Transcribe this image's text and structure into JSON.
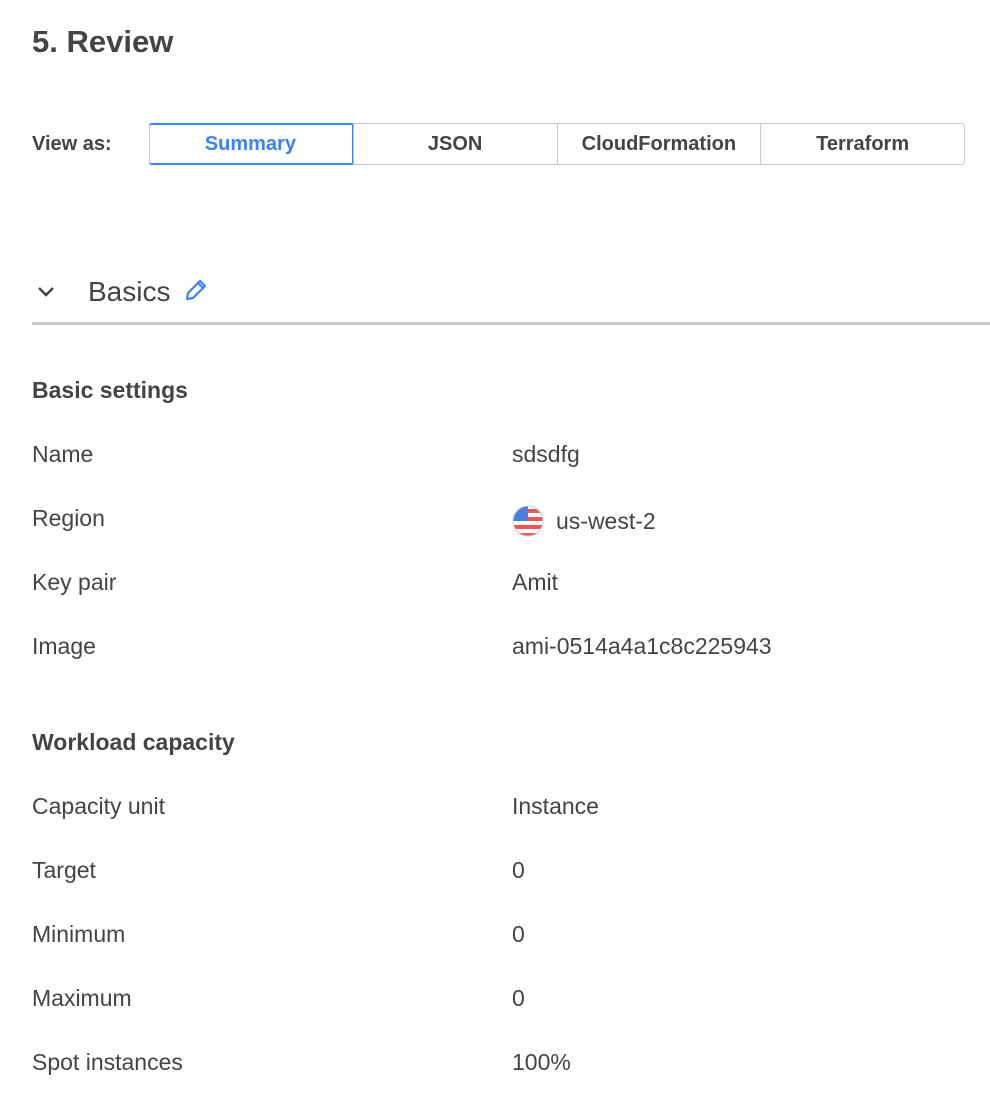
{
  "page_title": "5. Review",
  "view_as": {
    "label": "View as:",
    "options": [
      "Summary",
      "JSON",
      "CloudFormation",
      "Terraform"
    ],
    "selected": "Summary"
  },
  "section": {
    "title": "Basics",
    "expanded": true
  },
  "basic_settings": {
    "heading": "Basic settings",
    "rows": [
      {
        "label": "Name",
        "value": "sdsdfg"
      },
      {
        "label": "Region",
        "value": "us-west-2",
        "icon": "us-flag-icon"
      },
      {
        "label": "Key pair",
        "value": "Amit"
      },
      {
        "label": "Image",
        "value": "ami-0514a4a1c8c225943"
      }
    ]
  },
  "workload_capacity": {
    "heading": "Workload capacity",
    "rows": [
      {
        "label": "Capacity unit",
        "value": "Instance"
      },
      {
        "label": "Target",
        "value": "0"
      },
      {
        "label": "Minimum",
        "value": "0"
      },
      {
        "label": "Maximum",
        "value": "0"
      },
      {
        "label": "Spot instances",
        "value": "100%"
      }
    ]
  },
  "colors": {
    "accent": "#3b82f6",
    "text": "#444444",
    "border": "#c8c8c8"
  }
}
